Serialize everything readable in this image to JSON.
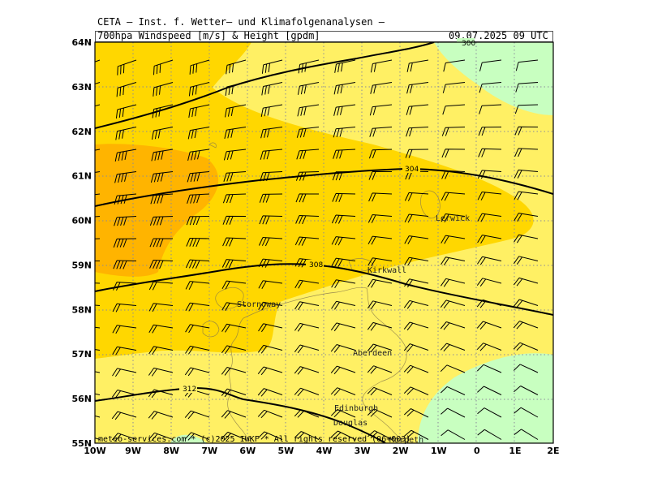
{
  "header": {
    "institute": "CETA – Inst. f. Wetter– und Klimafolgenanalysen –",
    "title": "700hpa Windspeed [m/s] & Height [gpdm]",
    "valid_time": "09.07.2025 09 UTC"
  },
  "footer": "meteo-services.com * (c)2025 IWKF * All rights reserved (06+003)",
  "map": {
    "lat_labels": [
      "64N",
      "63N",
      "62N",
      "61N",
      "60N",
      "59N",
      "58N",
      "57N",
      "56N",
      "55N"
    ],
    "lon_labels": [
      "10W",
      "9W",
      "8W",
      "7W",
      "6W",
      "5W",
      "4W",
      "3W",
      "2W",
      "1W",
      "0",
      "1E",
      "2E"
    ],
    "cities": [
      {
        "name": "Lerwick",
        "lon": -0.9,
        "lat": 60.05
      },
      {
        "name": "Kirkwall",
        "lon": -2.7,
        "lat": 58.95
      },
      {
        "name": "Stornoway",
        "lon": -6.3,
        "lat": 58.1
      },
      {
        "name": "Aberdeen",
        "lon": -3.2,
        "lat": 57.1
      },
      {
        "name": "Edinburgh",
        "lon": -3.7,
        "lat": 55.8
      },
      {
        "name": "Douglas",
        "lon": -3.6,
        "lat": 55.4
      },
      {
        "name": "Morpeth",
        "lon": -2.3,
        "lat": 55.05
      }
    ],
    "contours": [
      {
        "label": "300",
        "lon": -0.3,
        "lat": 63.95
      },
      {
        "label": "304",
        "lon": -1.7,
        "lat": 61.15
      },
      {
        "label": "308",
        "lon": -5.3,
        "lat": 59.05
      },
      {
        "label": "312",
        "lon": -7.5,
        "lat": 56.25
      }
    ],
    "colors": {
      "wind_10_15": "#fff064",
      "wind_15_20": "#ffd700",
      "wind_20_25": "#ffb400",
      "wind_5_10": "#c8ffc0",
      "gridline": "#8a8a9a"
    }
  }
}
